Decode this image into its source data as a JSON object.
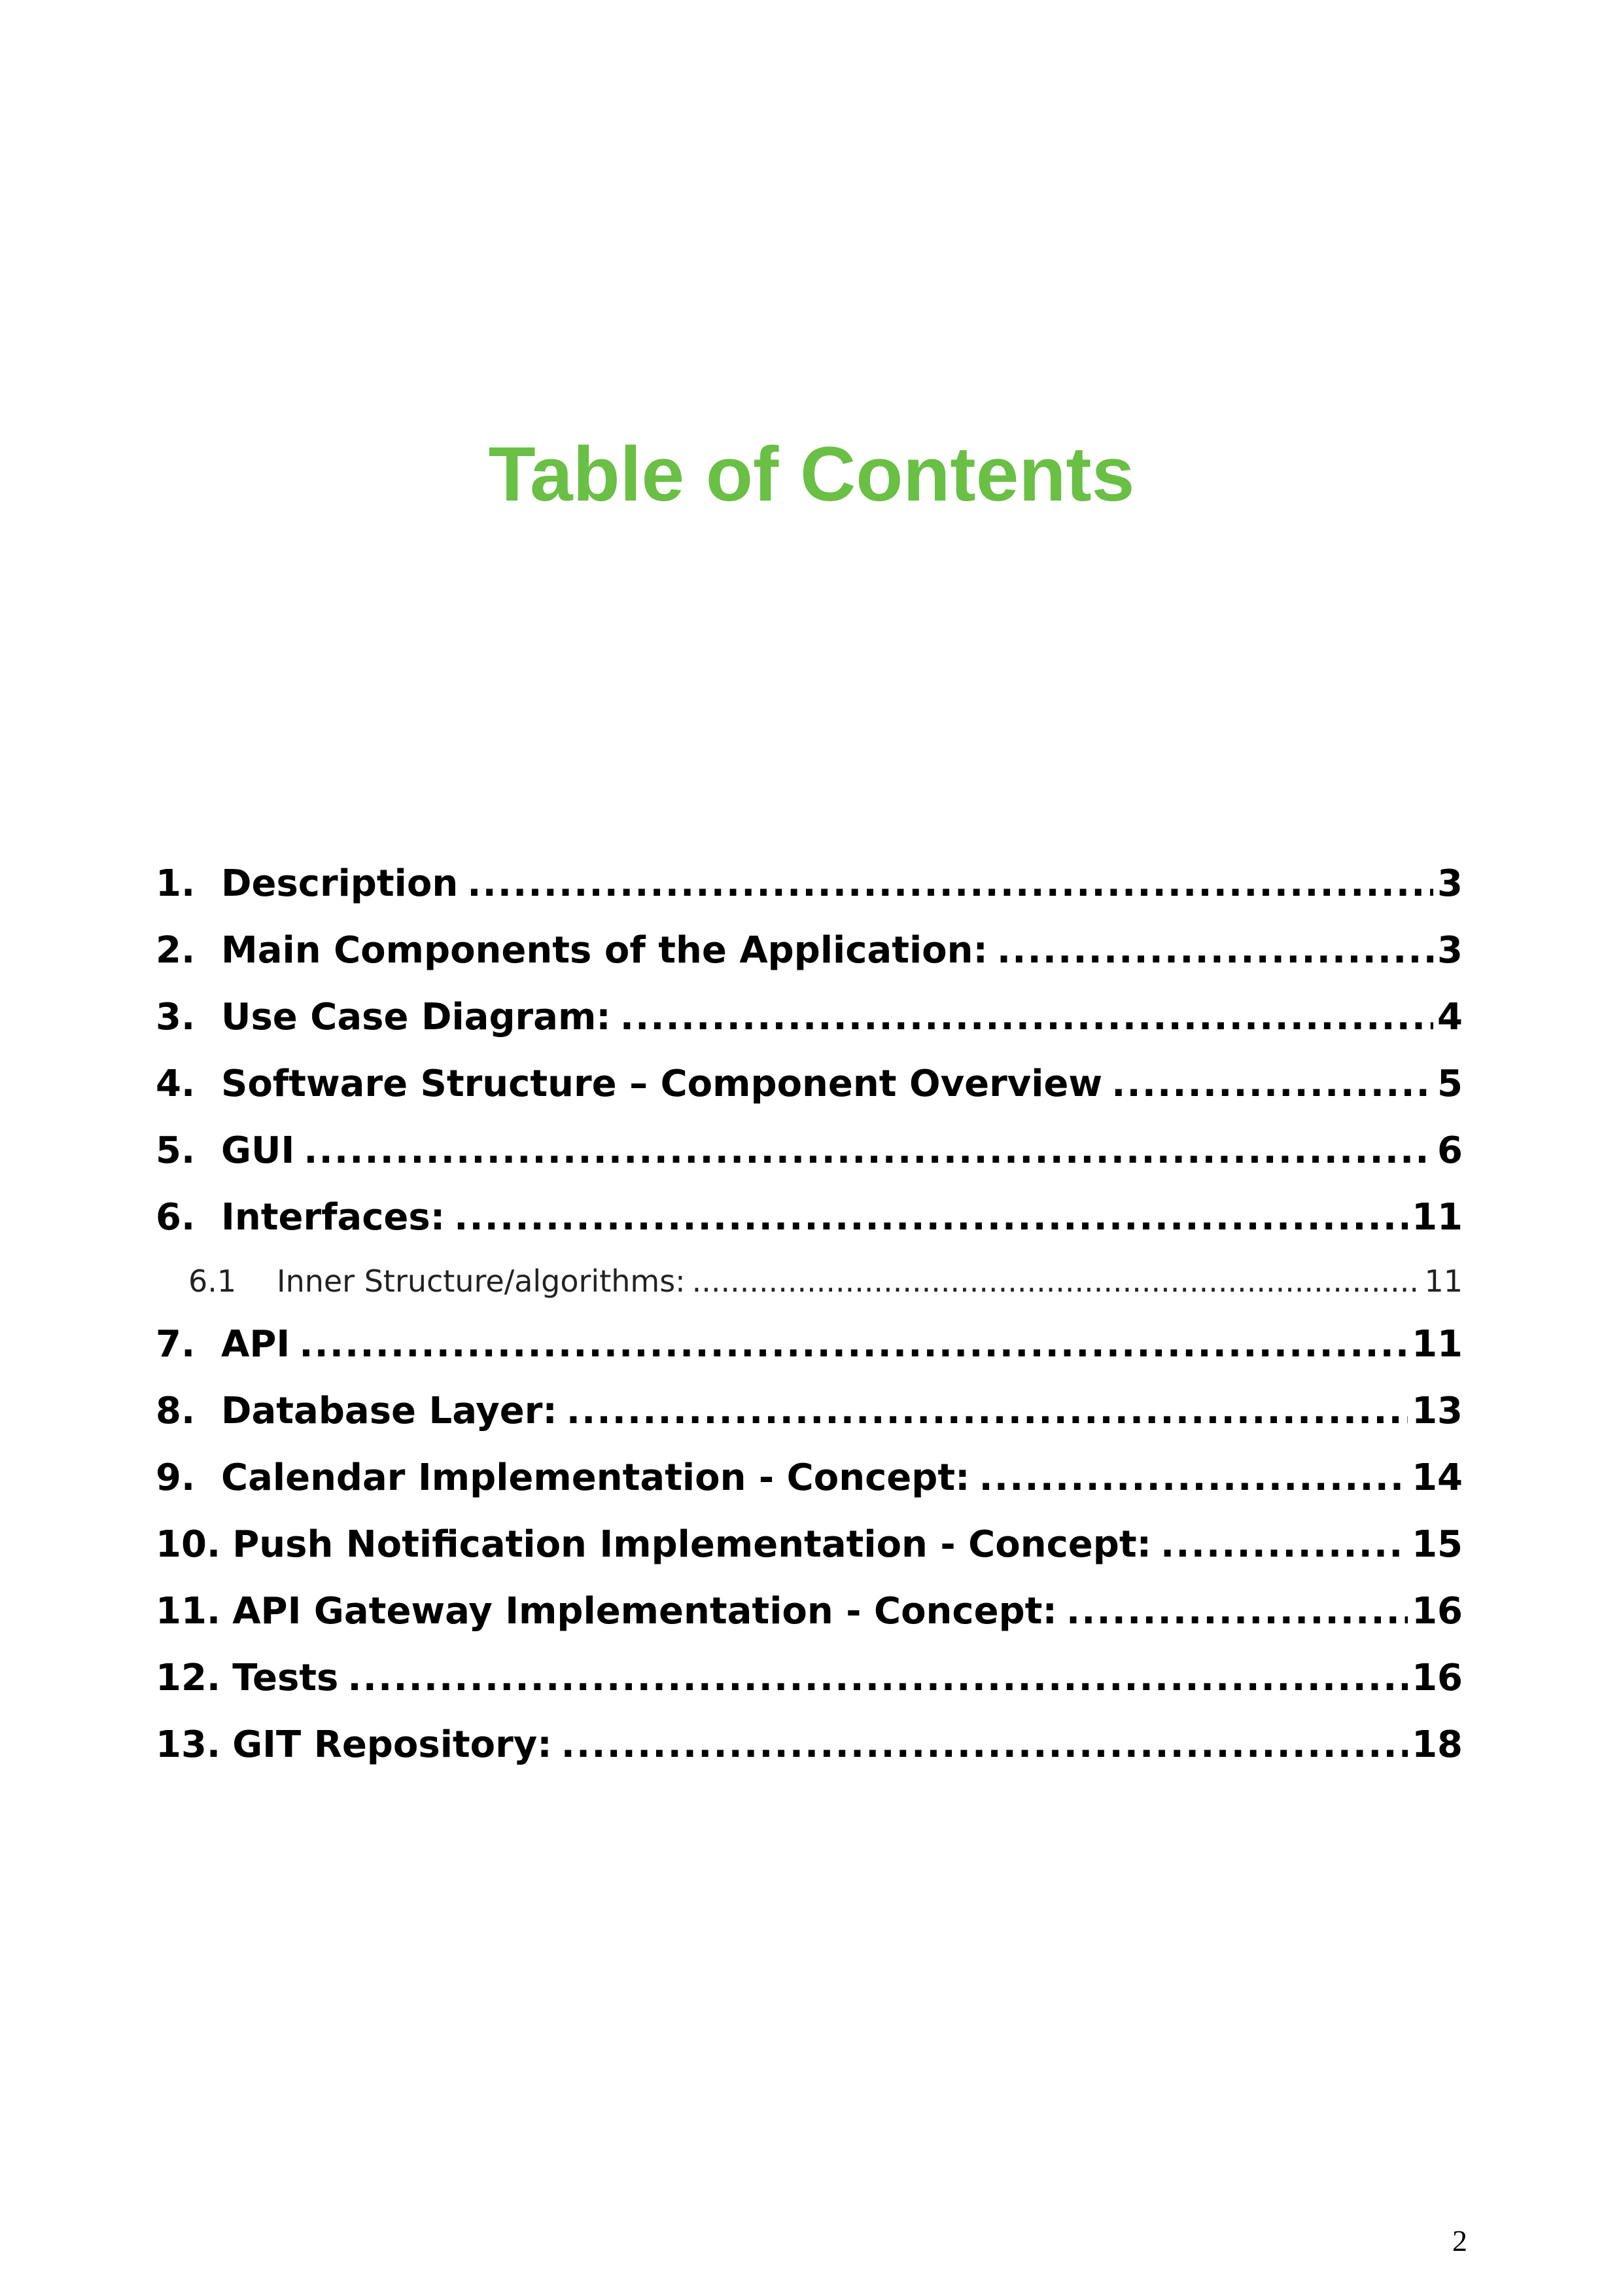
{
  "title": "Table of Contents",
  "toc": [
    {
      "num": "1.",
      "label": "Description",
      "page": "3"
    },
    {
      "num": "2.",
      "label": "Main Components of the Application:",
      "page": "3"
    },
    {
      "num": "3.",
      "label": "Use Case Diagram:",
      "page": "4"
    },
    {
      "num": "4.",
      "label": "Software Structure – Component Overview",
      "page": "5"
    },
    {
      "num": "5.",
      "label": "GUI",
      "page": "6"
    },
    {
      "num": "6.",
      "label": "Interfaces:",
      "page": "11"
    },
    {
      "num": "6.1",
      "label": "Inner Structure/algorithms:",
      "page": "11"
    },
    {
      "num": "7.",
      "label": "API",
      "page": "11"
    },
    {
      "num": "8.",
      "label": "Database Layer:",
      "page": "13"
    },
    {
      "num": "9.",
      "label": "Calendar Implementation - Concept:",
      "page": "14"
    },
    {
      "num": "10.",
      "label": "Push Notification Implementation - Concept:",
      "page": "15"
    },
    {
      "num": "11.",
      "label": "API Gateway Implementation - Concept:",
      "page": "16"
    },
    {
      "num": "12.",
      "label": "Tests",
      "page": "16"
    },
    {
      "num": "13.",
      "label": "GIT Repository:",
      "page": "18"
    }
  ],
  "page_number": "2",
  "colors": {
    "title": "#6abf45",
    "text": "#000000"
  }
}
